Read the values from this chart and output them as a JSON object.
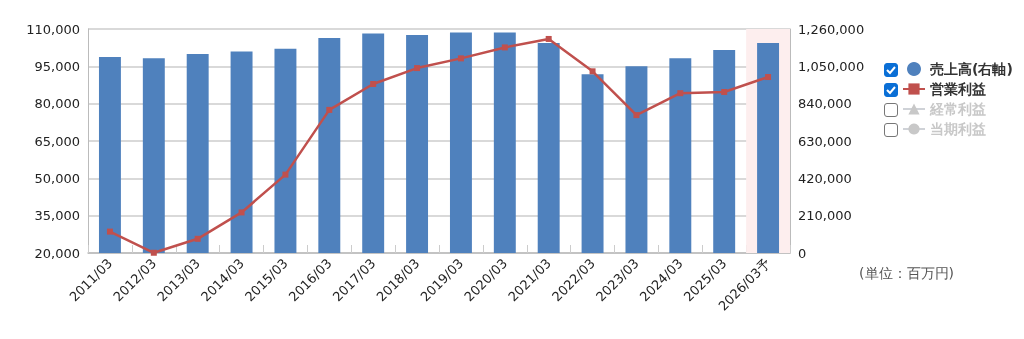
{
  "chart_data": {
    "type": "bar",
    "categories": [
      "2011/03",
      "2012/03",
      "2013/03",
      "2014/03",
      "2015/03",
      "2016/03",
      "2017/03",
      "2018/03",
      "2019/03",
      "2020/03",
      "2021/03",
      "2022/03",
      "2023/03",
      "2024/03",
      "2025/03",
      "2026/03予"
    ],
    "series": [
      {
        "name": "売上高(右軸)",
        "type": "bar",
        "axis": "y2",
        "color": "#4f81bd",
        "values": [
          1102000,
          1095000,
          1119000,
          1134000,
          1149000,
          1209000,
          1234000,
          1226000,
          1241000,
          1241000,
          1181000,
          1005000,
          1050000,
          1095000,
          1142000,
          1181000
        ]
      },
      {
        "name": "営業利益",
        "type": "line",
        "color": "#c0504d",
        "marker": "square",
        "values": [
          28600,
          20100,
          25700,
          36300,
          51500,
          77500,
          87900,
          94300,
          98200,
          102600,
          106000,
          93000,
          75400,
          84200,
          84700,
          90700
        ]
      },
      {
        "name": "経常利益",
        "type": "line",
        "color": "#cccccc",
        "marker": "triangle",
        "values": [
          null,
          null,
          null,
          null,
          null,
          null,
          null,
          null,
          null,
          null,
          null,
          null,
          null,
          null,
          null,
          null
        ]
      },
      {
        "name": "当期利益",
        "type": "line",
        "color": "#cccccc",
        "marker": "circle",
        "values": [
          null,
          null,
          null,
          null,
          null,
          null,
          null,
          null,
          null,
          null,
          null,
          null,
          null,
          null,
          null,
          null
        ]
      }
    ],
    "ylim": [
      20000,
      110000
    ],
    "yticks": [
      {
        "value": 20000,
        "label": "20,000"
      },
      {
        "value": 35000,
        "label": "35,000"
      },
      {
        "value": 50000,
        "label": "50,000"
      },
      {
        "value": 65000,
        "label": "65,000"
      },
      {
        "value": 80000,
        "label": "80,000"
      },
      {
        "value": 95000,
        "label": "95,000"
      },
      {
        "value": 110000,
        "label": "110,000"
      }
    ],
    "y2lim": [
      0,
      1260000
    ],
    "y2ticks": [
      0,
      {
        "value": 210000,
        "label": "210,000"
      },
      {
        "value": 420000,
        "label": "420,000"
      },
      {
        "value": 630000,
        "label": "630,000"
      },
      {
        "value": 840000,
        "label": "840,000"
      },
      {
        "value": 1050000,
        "label": "1,050,000"
      },
      {
        "value": 1260000,
        "label": "1,260,000"
      }
    ],
    "bands": [
      {
        "axis": "x",
        "from": "2026/03予",
        "to": "2026/03予",
        "color": "#fdeeee"
      }
    ],
    "annotations": [
      "(単位：百万円)"
    ],
    "grid": "y",
    "legend": "right"
  }
}
